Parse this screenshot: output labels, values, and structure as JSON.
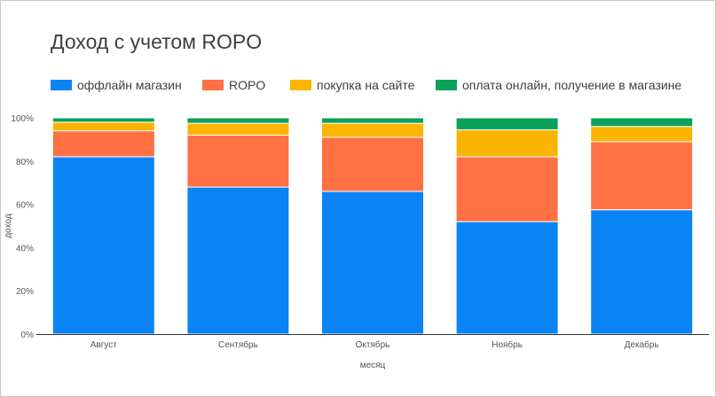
{
  "chart_data": {
    "type": "bar",
    "stacked": true,
    "normalized": true,
    "title": "Доход с учетом ROPO",
    "xlabel": "месяц",
    "ylabel": "доход",
    "ylim": [
      0,
      1
    ],
    "y_ticks": [
      0,
      0.2,
      0.4,
      0.6,
      0.8,
      1.0
    ],
    "y_tick_labels": [
      "0%",
      "20%",
      "40%",
      "60%",
      "80%",
      "100%"
    ],
    "categories": [
      "Август",
      "Сентябрь",
      "Октябрь",
      "Ноябрь",
      "Декабрь"
    ],
    "legend_position": "top-left",
    "grid": false,
    "series": [
      {
        "name": "оффлайн магазин",
        "color": "#0a84f5",
        "values": [
          0.82,
          0.68,
          0.66,
          0.52,
          0.575
        ]
      },
      {
        "name": "ROPO",
        "color": "#ff7043",
        "values": [
          0.12,
          0.24,
          0.25,
          0.3,
          0.315
        ]
      },
      {
        "name": "покупка на сайте",
        "color": "#fbb400",
        "values": [
          0.04,
          0.055,
          0.065,
          0.125,
          0.07
        ]
      },
      {
        "name": "оплата онлайн, получение в магазине",
        "color": "#0aa158",
        "values": [
          0.02,
          0.025,
          0.025,
          0.055,
          0.04
        ]
      }
    ]
  }
}
